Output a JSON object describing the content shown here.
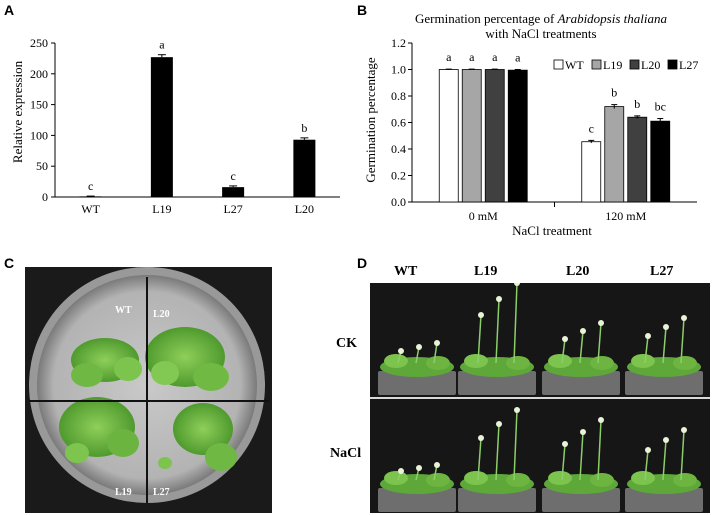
{
  "panels": {
    "a": {
      "letter": "A"
    },
    "b": {
      "letter": "B"
    },
    "c": {
      "letter": "C"
    },
    "d": {
      "letter": "D"
    }
  },
  "chart_data": [
    {
      "type": "bar",
      "panel": "A",
      "ylabel": "Relative expression",
      "xlabel": "",
      "ylim": [
        0,
        250
      ],
      "yticks": [
        "0",
        "50",
        "100",
        "150",
        "200",
        "250"
      ],
      "categories": [
        "WT",
        "L19",
        "L27",
        "L20"
      ],
      "values": [
        1,
        227,
        16,
        93
      ],
      "errors": [
        0.5,
        4,
        2,
        3
      ],
      "significance": [
        "c",
        "a",
        "c",
        "b"
      ],
      "bar_color": "#000000",
      "grid": false
    },
    {
      "type": "bar",
      "panel": "B",
      "title_prefix": "Germination percentage of ",
      "title_species": "Arabidopsis thaliana",
      "title_line2": "with NaCl treatments",
      "ylabel": "Germination percentage",
      "xlabel": "NaCl treatment",
      "ylim": [
        0,
        1.2
      ],
      "yticks": [
        "0.0",
        "0.2",
        "0.4",
        "0.6",
        "0.8",
        "1.0",
        "1.2"
      ],
      "categories": [
        "0 mM",
        "120 mM"
      ],
      "legend_position": "top-right",
      "grid": false,
      "series": [
        {
          "name": "WT",
          "color": "#ffffff",
          "values": [
            1.0,
            0.455
          ],
          "errors": [
            0.003,
            0.01
          ],
          "significance": [
            "a",
            "c"
          ]
        },
        {
          "name": "L19",
          "color": "#a6a6a6",
          "values": [
            1.0,
            0.72
          ],
          "errors": [
            0.003,
            0.015
          ],
          "significance": [
            "a",
            "b"
          ]
        },
        {
          "name": "L20",
          "color": "#404040",
          "values": [
            1.0,
            0.64
          ],
          "errors": [
            0.003,
            0.01
          ],
          "significance": [
            "a",
            "b"
          ]
        },
        {
          "name": "L27",
          "color": "#000000",
          "values": [
            0.995,
            0.61
          ],
          "errors": [
            0.005,
            0.02
          ],
          "significance": [
            "a",
            "bc"
          ]
        }
      ]
    }
  ],
  "photo_c": {
    "quadrant_labels": {
      "top_left": "WT",
      "top_right": "L20",
      "bottom_left": "L19",
      "bottom_right": "L27"
    }
  },
  "photo_d": {
    "columns": [
      "WT",
      "L19",
      "L20",
      "L27"
    ],
    "rows": [
      "CK",
      "NaCl"
    ]
  }
}
